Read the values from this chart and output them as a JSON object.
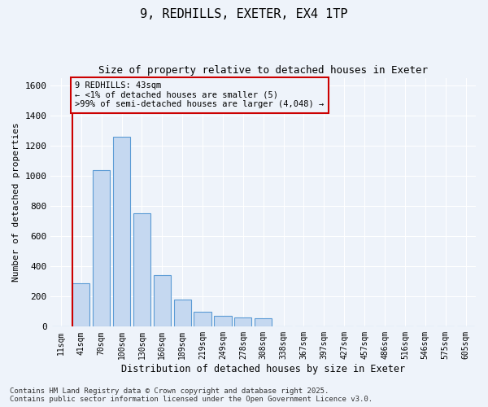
{
  "title": "9, REDHILLS, EXETER, EX4 1TP",
  "subtitle": "Size of property relative to detached houses in Exeter",
  "xlabel": "Distribution of detached houses by size in Exeter",
  "ylabel": "Number of detached properties",
  "categories": [
    "11sqm",
    "41sqm",
    "70sqm",
    "100sqm",
    "130sqm",
    "160sqm",
    "189sqm",
    "219sqm",
    "249sqm",
    "278sqm",
    "308sqm",
    "338sqm",
    "367sqm",
    "397sqm",
    "427sqm",
    "457sqm",
    "486sqm",
    "516sqm",
    "546sqm",
    "575sqm",
    "605sqm"
  ],
  "values": [
    0,
    290,
    1040,
    1260,
    750,
    340,
    180,
    100,
    70,
    60,
    55,
    0,
    0,
    0,
    0,
    0,
    0,
    0,
    0,
    0,
    0
  ],
  "bar_color": "#c5d8f0",
  "bar_edge_color": "#5b9bd5",
  "highlight_bar_index": 1,
  "annotation_box_text": "9 REDHILLS: 43sqm\n← <1% of detached houses are smaller (5)\n>99% of semi-detached houses are larger (4,048) →",
  "annotation_box_edgecolor": "#cc0000",
  "red_line_color": "#cc0000",
  "ylim": [
    0,
    1650
  ],
  "yticks": [
    0,
    200,
    400,
    600,
    800,
    1000,
    1200,
    1400,
    1600
  ],
  "background_color": "#eef3fa",
  "grid_color": "#ffffff",
  "footnote1": "Contains HM Land Registry data © Crown copyright and database right 2025.",
  "footnote2": "Contains public sector information licensed under the Open Government Licence v3.0.",
  "title_fontsize": 11,
  "subtitle_fontsize": 9,
  "annotation_fontsize": 7.5,
  "footnote_fontsize": 6.5,
  "ylabel_fontsize": 8,
  "xlabel_fontsize": 8.5
}
